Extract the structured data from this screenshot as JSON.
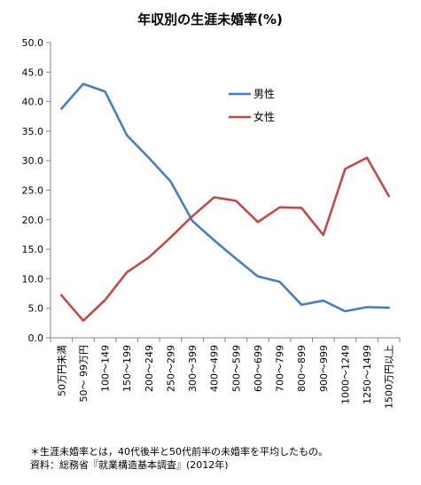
{
  "chart_data": {
    "type": "line",
    "title": "年収別の生涯未婚率(%)",
    "ylim": [
      0,
      50
    ],
    "ytick_step": 5,
    "ytick_labels": [
      "0.0",
      "5.0",
      "10.0",
      "15.0",
      "20.0",
      "25.0",
      "30.0",
      "35.0",
      "40.0",
      "45.0",
      "50.0"
    ],
    "grid": false,
    "legend_position": "upper-middle",
    "categories": [
      "50万円未満",
      "50〜 99万円",
      "100〜149",
      "150〜199",
      "200〜249",
      "250〜299",
      "300〜399",
      "400〜499",
      "500〜599",
      "600〜699",
      "700〜799",
      "800〜899",
      "900〜999",
      "1000〜1249",
      "1250〜1499",
      "1500万円以上"
    ],
    "series": [
      {
        "name": "男性",
        "color": "#4a7ebb",
        "values": [
          38.8,
          43.0,
          41.7,
          34.3,
          30.5,
          26.5,
          19.8,
          16.5,
          13.4,
          10.4,
          9.5,
          5.6,
          6.3,
          4.5,
          5.2,
          5.1
        ]
      },
      {
        "name": "女性",
        "color": "#be4b48",
        "values": [
          7.2,
          2.9,
          6.4,
          11.1,
          13.6,
          17.0,
          20.6,
          23.8,
          23.2,
          19.6,
          22.1,
          22.0,
          17.4,
          28.6,
          30.5,
          24.0
        ]
      }
    ]
  },
  "footnotes": [
    "＊生涯未婚率とは，40代後半と50代前半の未婚率を平均したもの。",
    "資料：総務省『就業構造基本調査』(2012年)"
  ]
}
